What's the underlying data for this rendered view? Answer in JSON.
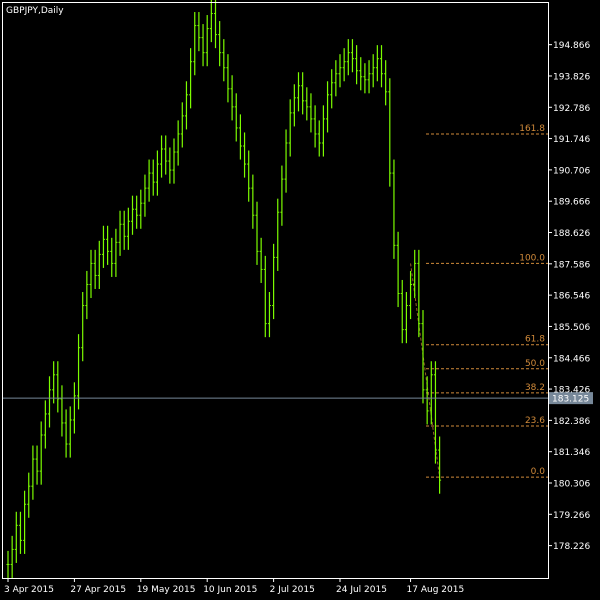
{
  "chart_title": "GBPJPY,Daily",
  "colors": {
    "background": "#000000",
    "frame": "#FFFFFF",
    "candle": "#7CFC00",
    "fib": "#D08A3A",
    "price_line": "#778899",
    "price_tag_bg": "#778899",
    "text": "#FFFFFF"
  },
  "chart_data": {
    "type": "line",
    "symbol": "GBPJPY",
    "timeframe": "Daily",
    "title": "GBPJPY,Daily",
    "ylim": [
      177.15,
      196.25
    ],
    "y_ticks": [
      "194.866",
      "193.826",
      "192.786",
      "191.746",
      "190.706",
      "189.666",
      "188.626",
      "187.586",
      "186.546",
      "185.506",
      "184.466",
      "183.426",
      "182.386",
      "181.346",
      "180.306",
      "179.266",
      "178.226"
    ],
    "x_ticks": [
      {
        "label": "3 Apr 2015",
        "bar": 0
      },
      {
        "label": "27 Apr 2015",
        "bar": 16
      },
      {
        "label": "19 May 2015",
        "bar": 32
      },
      {
        "label": "10 Jun 2015",
        "bar": 48
      },
      {
        "label": "2 Jul 2015",
        "bar": 64
      },
      {
        "label": "24 Jul 2015",
        "bar": 80
      },
      {
        "label": "17 Aug 2015",
        "bar": 97
      }
    ],
    "bar_count": 105,
    "grid": false,
    "current_price": "183.125",
    "series": [
      {
        "values": [
          177.6,
          178.1,
          178.9,
          178.4,
          179.6,
          180.2,
          181.1,
          180.7,
          181.9,
          182.6,
          183.4,
          183.9,
          183.1,
          182.3,
          181.6,
          182.4,
          183.2,
          184.8,
          186.2,
          186.9,
          187.6,
          187.2,
          187.9,
          188.4,
          188.0,
          187.6,
          188.3,
          188.9,
          188.5,
          189.0,
          189.4,
          189.2,
          189.6,
          190.1,
          190.6,
          190.3,
          190.9,
          191.4,
          191.0,
          190.7,
          191.3,
          191.9,
          192.5,
          193.2,
          194.3,
          195.5,
          195.1,
          194.6,
          195.4,
          195.9,
          195.2,
          194.6,
          194.1,
          193.4,
          192.8,
          192.1,
          191.5,
          190.9,
          190.1,
          189.2,
          188.0,
          187.4,
          185.6,
          186.2,
          187.8,
          189.3,
          190.4,
          191.6,
          192.6,
          193.1,
          193.5,
          193.0,
          192.8,
          192.4,
          191.9,
          191.6,
          192.4,
          193.2,
          193.6,
          193.9,
          194.1,
          194.3,
          194.6,
          194.4,
          194.0,
          193.8,
          193.7,
          193.9,
          194.1,
          194.4,
          193.9,
          193.3,
          190.6,
          188.2,
          186.6,
          185.4,
          186.2,
          186.9,
          187.6,
          185.6,
          183.4,
          182.7,
          183.9,
          181.4,
          180.4
        ]
      }
    ],
    "fibonacci": {
      "levels": [
        {
          "label": "161.8",
          "value": 191.9
        },
        {
          "label": "100.0",
          "value": 187.6
        },
        {
          "label": "61.8",
          "value": 184.9
        },
        {
          "label": "50.0",
          "value": 184.1
        },
        {
          "label": "38.2",
          "value": 183.3
        },
        {
          "label": "23.6",
          "value": 182.2
        },
        {
          "label": "0.0",
          "value": 180.5
        }
      ]
    }
  }
}
